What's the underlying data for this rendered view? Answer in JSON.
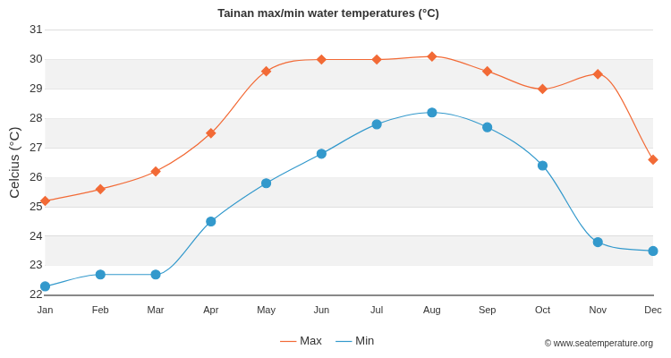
{
  "chart_data": {
    "type": "line",
    "title": "Tainan max/min water temperatures (°C)",
    "y_label": "Celcius (°C)",
    "source": "© www.seatemperature.org",
    "categories": [
      "Jan",
      "Feb",
      "Mar",
      "Apr",
      "May",
      "Jun",
      "Jul",
      "Aug",
      "Sep",
      "Oct",
      "Nov",
      "Dec"
    ],
    "series": [
      {
        "name": "Max",
        "color": "#f26a36",
        "marker": "diamond",
        "values": [
          25.2,
          25.6,
          26.2,
          27.5,
          29.6,
          30.0,
          30.0,
          30.1,
          29.6,
          29.0,
          29.5,
          26.6
        ]
      },
      {
        "name": "Min",
        "color": "#3399cc",
        "marker": "circle",
        "values": [
          22.3,
          22.7,
          22.7,
          24.5,
          25.8,
          26.8,
          27.8,
          28.2,
          27.7,
          26.4,
          23.8,
          23.5
        ]
      }
    ],
    "ylim": [
      22,
      31
    ],
    "yticks": [
      22,
      23,
      24,
      25,
      26,
      27,
      28,
      29,
      30,
      31
    ],
    "grid": true,
    "legend": "bottom"
  }
}
